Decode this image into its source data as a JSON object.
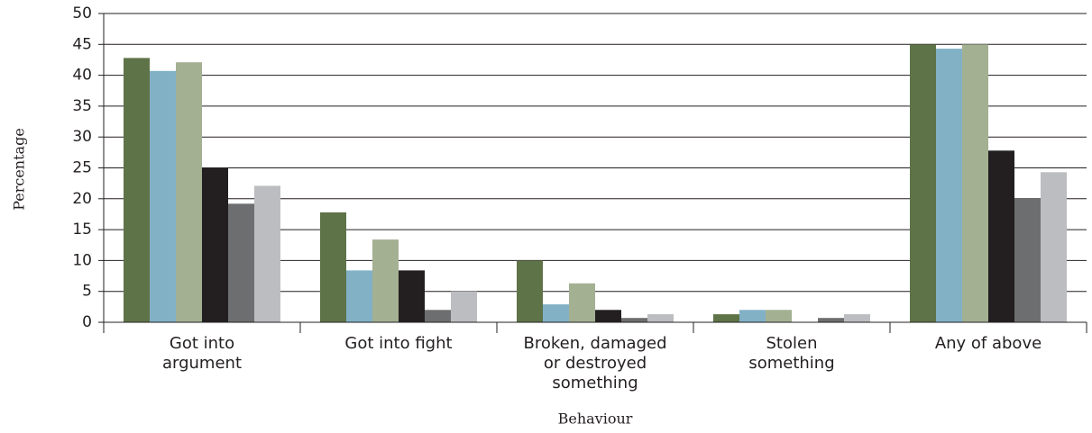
{
  "chart_data": {
    "type": "bar",
    "x_label": "Behaviour",
    "y_label": "Percentage",
    "categories": [
      "Got into\nargument",
      "Got into fight",
      "Broken, damaged\nor destroyed\nsomething",
      "Stolen\nsomething",
      "Any of above"
    ],
    "series": [
      {
        "color": "#5f7348",
        "values": [
          42.8,
          17.8,
          10.0,
          1.3,
          45.0
        ]
      },
      {
        "color": "#82b1c6",
        "values": [
          40.7,
          8.4,
          2.9,
          2.0,
          44.3
        ]
      },
      {
        "color": "#a3b092",
        "values": [
          42.1,
          13.4,
          6.3,
          2.0,
          45.0
        ]
      },
      {
        "color": "#231f20",
        "values": [
          25.0,
          8.4,
          2.0,
          0,
          27.8
        ]
      },
      {
        "color": "#6d6e70",
        "values": [
          19.2,
          2.0,
          0.7,
          0.7,
          20.0
        ]
      },
      {
        "color": "#bcbdc0",
        "values": [
          22.1,
          5.0,
          1.3,
          1.3,
          24.3
        ]
      }
    ],
    "ylim": [
      0,
      50
    ],
    "yticks": [
      0,
      5,
      10,
      15,
      20,
      25,
      30,
      35,
      40,
      45,
      50
    ],
    "grid": true
  }
}
